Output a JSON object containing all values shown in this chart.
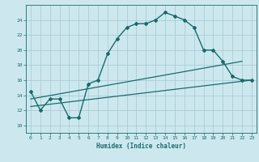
{
  "xlabel": "Humidex (Indice chaleur)",
  "background_color": "#cce8ee",
  "grid_color": "#aacdd6",
  "line_color": "#1a6b6b",
  "xlim": [
    -0.5,
    23.5
  ],
  "ylim": [
    9.0,
    26.0
  ],
  "xticks": [
    0,
    1,
    2,
    3,
    4,
    5,
    6,
    7,
    8,
    9,
    10,
    11,
    12,
    13,
    14,
    15,
    16,
    17,
    18,
    19,
    20,
    21,
    22,
    23
  ],
  "yticks": [
    10,
    12,
    14,
    16,
    18,
    20,
    22,
    24
  ],
  "curve1_x": [
    0,
    1,
    2,
    3,
    4,
    5,
    6,
    7,
    8,
    9,
    10,
    11,
    12,
    13,
    14,
    15,
    16,
    17,
    18,
    19,
    20,
    21,
    22,
    23
  ],
  "curve1_y": [
    14.5,
    12.0,
    13.5,
    13.5,
    11.0,
    11.0,
    15.5,
    16.0,
    19.5,
    21.5,
    23.0,
    23.5,
    23.5,
    24.0,
    25.0,
    24.5,
    24.0,
    23.0,
    20.0,
    20.0,
    18.5,
    16.5,
    16.0,
    16.0
  ],
  "curve2_x": [
    0,
    22
  ],
  "curve2_y": [
    13.5,
    18.5
  ],
  "curve3_x": [
    0,
    23
  ],
  "curve3_y": [
    12.5,
    16.0
  ]
}
